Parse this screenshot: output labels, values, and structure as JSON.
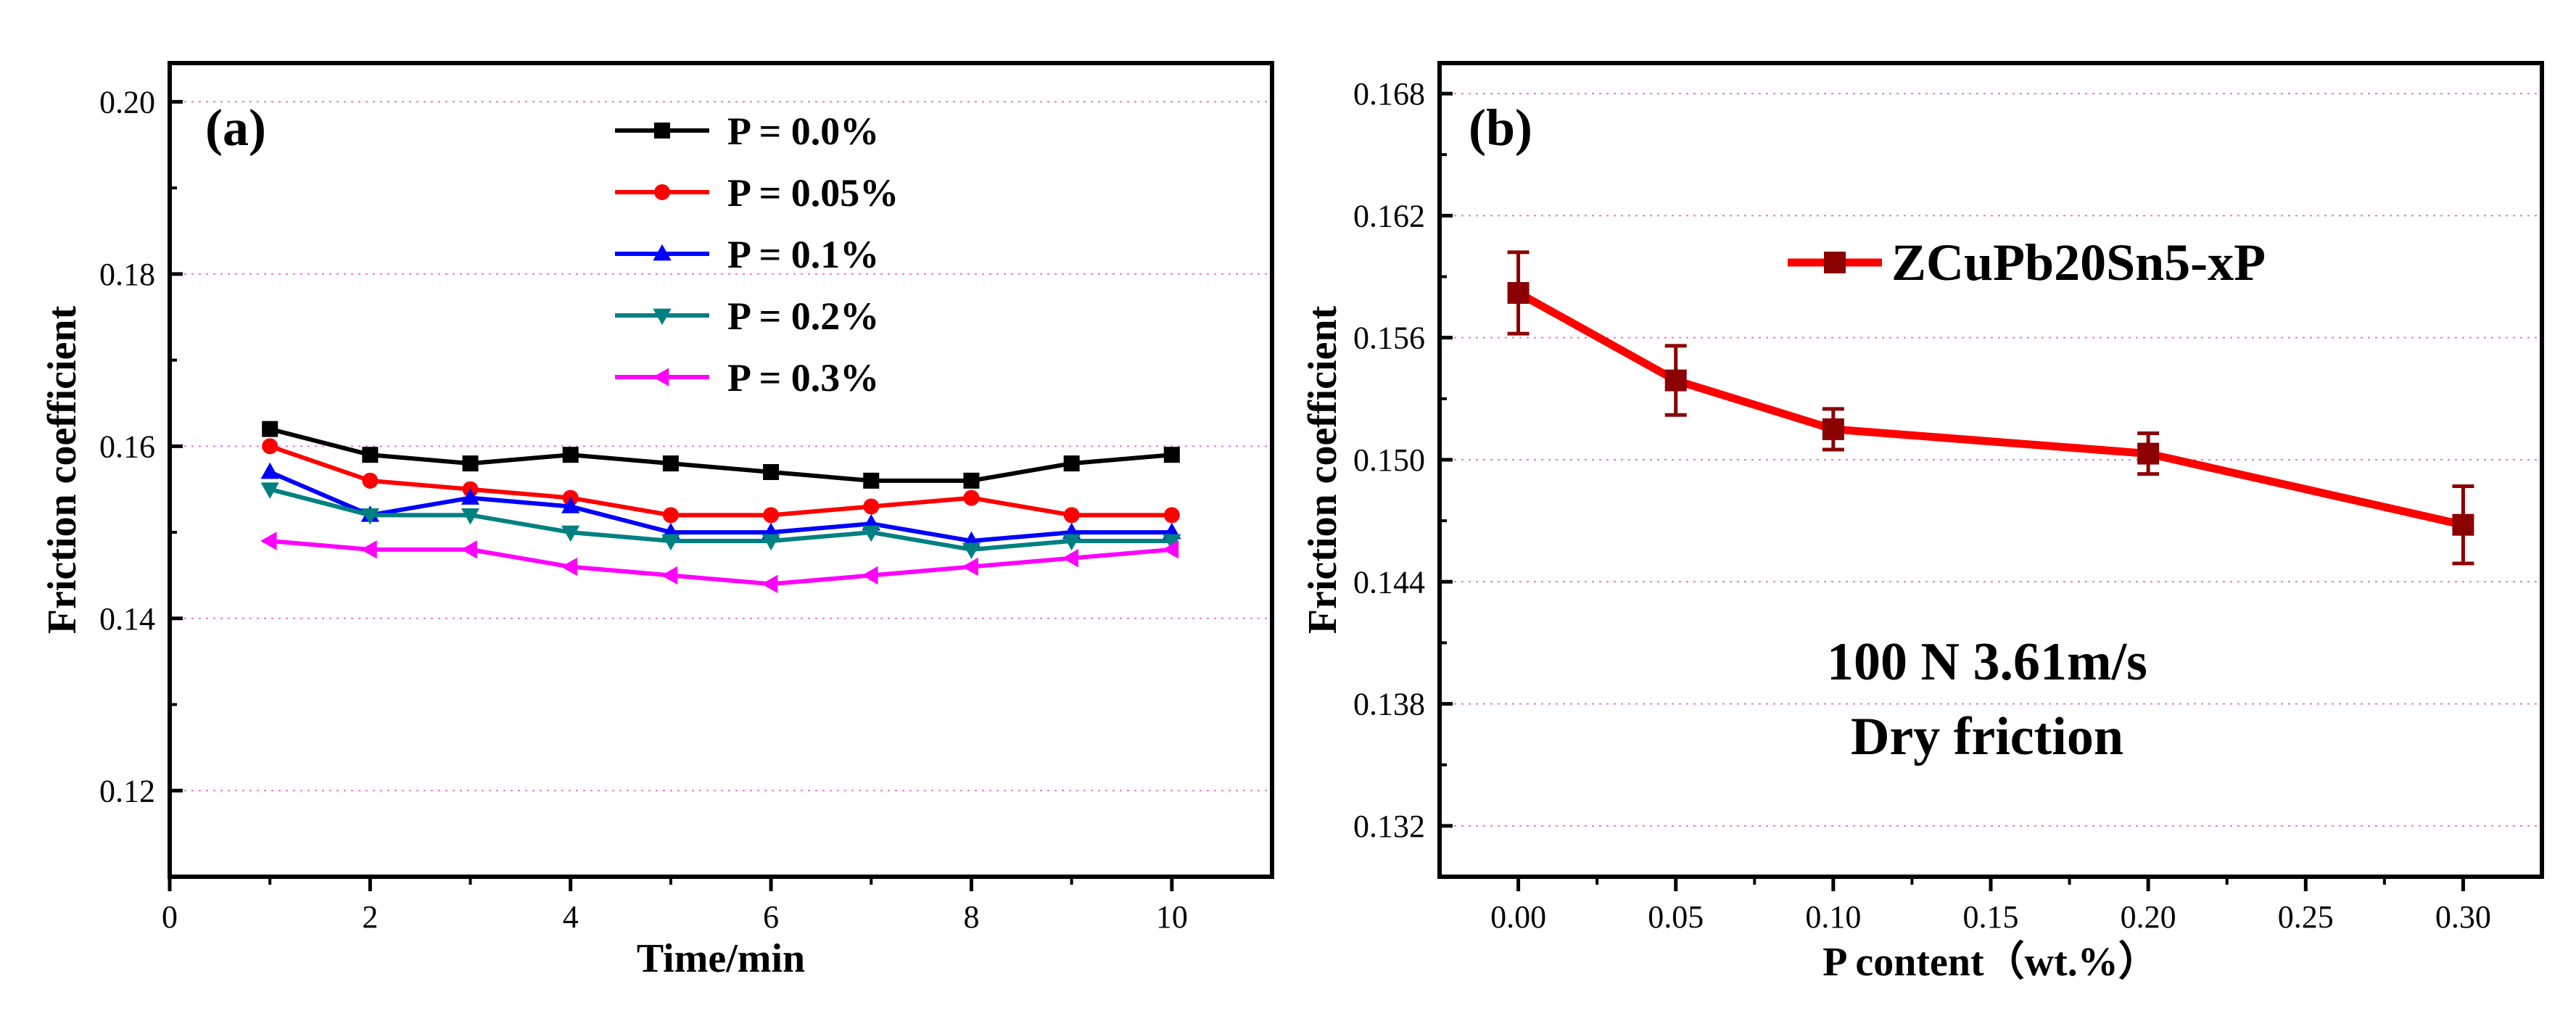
{
  "chart_data": [
    {
      "type": "line",
      "panel_label": "(a)",
      "xlabel": "Time/min",
      "ylabel": "Friction coefficient",
      "xlim": [
        0,
        11
      ],
      "ylim": [
        0.11,
        0.2045
      ],
      "xticks": [
        0,
        2,
        4,
        6,
        8,
        10
      ],
      "xtick_labels": [
        "0",
        "2",
        "4",
        "6",
        "8",
        "10"
      ],
      "yticks": [
        0.12,
        0.14,
        0.16,
        0.18,
        0.2
      ],
      "ytick_labels": [
        "0.12",
        "0.14",
        "0.16",
        "0.18",
        "0.20"
      ],
      "grid": true,
      "legend_position": "top-center",
      "x": [
        1,
        2,
        3,
        4,
        5,
        6,
        7,
        8,
        9,
        10
      ],
      "series": [
        {
          "name": "P = 0.0%",
          "color": "#000000",
          "marker": "square",
          "values": [
            0.162,
            0.159,
            0.158,
            0.159,
            0.158,
            0.157,
            0.156,
            0.156,
            0.158,
            0.159
          ]
        },
        {
          "name": "P = 0.05%",
          "color": "#ff0000",
          "marker": "circle",
          "values": [
            0.16,
            0.156,
            0.155,
            0.154,
            0.152,
            0.152,
            0.153,
            0.154,
            0.152,
            0.152
          ]
        },
        {
          "name": "P = 0.1%",
          "color": "#0000ff",
          "marker": "triangle-up",
          "values": [
            0.157,
            0.152,
            0.154,
            0.153,
            0.15,
            0.15,
            0.151,
            0.149,
            0.15,
            0.15
          ]
        },
        {
          "name": "P = 0.2%",
          "color": "#008080",
          "marker": "triangle-down",
          "values": [
            0.155,
            0.152,
            0.152,
            0.15,
            0.149,
            0.149,
            0.15,
            0.148,
            0.149,
            0.149
          ]
        },
        {
          "name": "P = 0.3%",
          "color": "#ff00ff",
          "marker": "triangle-left",
          "values": [
            0.149,
            0.148,
            0.148,
            0.146,
            0.145,
            0.144,
            0.145,
            0.146,
            0.147,
            0.148
          ]
        }
      ]
    },
    {
      "type": "line",
      "panel_label": "(b)",
      "xlabel": "P content（wt.%）",
      "ylabel": "Friction coefficient",
      "xlim": [
        -0.025,
        0.325
      ],
      "ylim": [
        0.1295,
        0.1695
      ],
      "xticks": [
        0,
        0.05,
        0.1,
        0.15,
        0.2,
        0.25,
        0.3
      ],
      "xtick_labels": [
        "0.00",
        "0.05",
        "0.10",
        "0.15",
        "0.20",
        "0.25",
        "0.30"
      ],
      "yticks": [
        0.132,
        0.138,
        0.144,
        0.15,
        0.156,
        0.162,
        0.168
      ],
      "ytick_labels": [
        "0.132",
        "0.138",
        "0.144",
        "0.150",
        "0.156",
        "0.162",
        "0.168"
      ],
      "grid": true,
      "legend_position": "top-right",
      "series": [
        {
          "name": "ZCuPb20Sn5-xP",
          "color": "#ff0000",
          "marker_color": "#8b0000",
          "marker": "square",
          "x": [
            0,
            0.05,
            0.1,
            0.2,
            0.3
          ],
          "values": [
            0.1582,
            0.1539,
            0.1515,
            0.1503,
            0.1468
          ],
          "errors": [
            0.002,
            0.0017,
            0.001,
            0.001,
            0.0019
          ]
        }
      ],
      "annotations": [
        "100 N 3.61m/s",
        "Dry friction"
      ]
    }
  ]
}
